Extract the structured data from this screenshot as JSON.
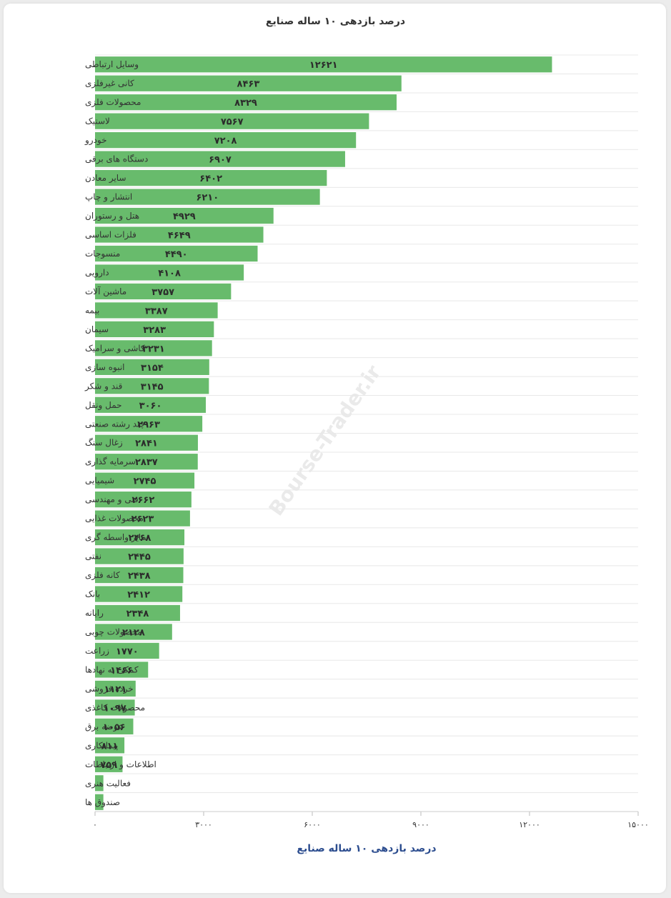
{
  "chart_data": {
    "type": "bar",
    "orientation": "horizontal",
    "title": "درصد بازدهی ۱۰ ساله صنایع",
    "xlabel": "درصد بازدهی ۱۰ ساله صنایع",
    "ylabel": "",
    "xlim": [
      0,
      15000
    ],
    "ticks": [
      0,
      3000,
      6000,
      9000,
      12000,
      15000
    ],
    "tick_labels": [
      "۰",
      "۳۰۰۰",
      "۶۰۰۰",
      "۹۰۰۰",
      "۱۲۰۰۰",
      "۱۵۰۰۰"
    ],
    "grid": true,
    "bar_color": "#68bb6c",
    "categories": [
      "وسایل ارتباطی",
      "کانی غیرفلزی",
      "محصولات فلزی",
      "لاستیک",
      "خودرو",
      "دستگاه های برقی",
      "سایر معادن",
      "انتشار و چاپ",
      "هتل و رستوران",
      "فلزات اساسی",
      "منسوجات",
      "دارویی",
      "ماشین آلات",
      "بیمه",
      "سیمان",
      "کاشی و سرامیک",
      "انبوه سازی",
      "قند و شکر",
      "حمل ونقل",
      "چند رشته صنعتی",
      "زغال سنگ",
      "سرمایه گذاری",
      "شیمیایی",
      "فنی و مهندسی",
      "محصولات غذایی",
      "سایر واسطه گری",
      "نفتی",
      "کانه فلزی",
      "بانک",
      "رایانه",
      "محصولات چوبی",
      "زراعت",
      "کمکی به نهادها",
      "خرده فروشی",
      "محصولات کاغذی",
      "عرضه برق",
      "پیمانکاری",
      "اطلاعات و ارتباطات",
      "فعالیت هنری",
      "صندوق ها"
    ],
    "values": [
      12621,
      8463,
      8329,
      7567,
      7208,
      6907,
      6402,
      6210,
      4929,
      4649,
      4490,
      4108,
      3757,
      3387,
      3283,
      3231,
      3154,
      3145,
      3060,
      2963,
      2841,
      2837,
      2745,
      2662,
      2623,
      2468,
      2445,
      2438,
      2412,
      2348,
      2128,
      1770,
      1466,
      1121,
      1097,
      1056,
      811,
      759,
      230,
      230
    ],
    "value_labels": [
      "۱۲۶۲۱",
      "۸۴۶۳",
      "۸۳۲۹",
      "۷۵۶۷",
      "۷۲۰۸",
      "۶۹۰۷",
      "۶۴۰۲",
      "۶۲۱۰",
      "۴۹۲۹",
      "۴۶۴۹",
      "۴۴۹۰",
      "۴۱۰۸",
      "۳۷۵۷",
      "۳۳۸۷",
      "۳۲۸۳",
      "۳۲۳۱",
      "۳۱۵۴",
      "۳۱۴۵",
      "۳۰۶۰",
      "۲۹۶۳",
      "۲۸۴۱",
      "۲۸۳۷",
      "۲۷۴۵",
      "۲۶۶۲",
      "۲۶۲۳",
      "۲۴۶۸",
      "۲۴۴۵",
      "۲۴۳۸",
      "۲۴۱۲",
      "۲۳۴۸",
      "۲۱۲۸",
      "۱۷۷۰",
      "۱۴۶۶",
      "۱۱۲۱",
      "۱۰۹۷",
      "۱۰۵۶",
      "۸۱۱",
      "۷۵۹",
      "",
      ""
    ]
  },
  "watermark": "Bourse-Trader.ir"
}
